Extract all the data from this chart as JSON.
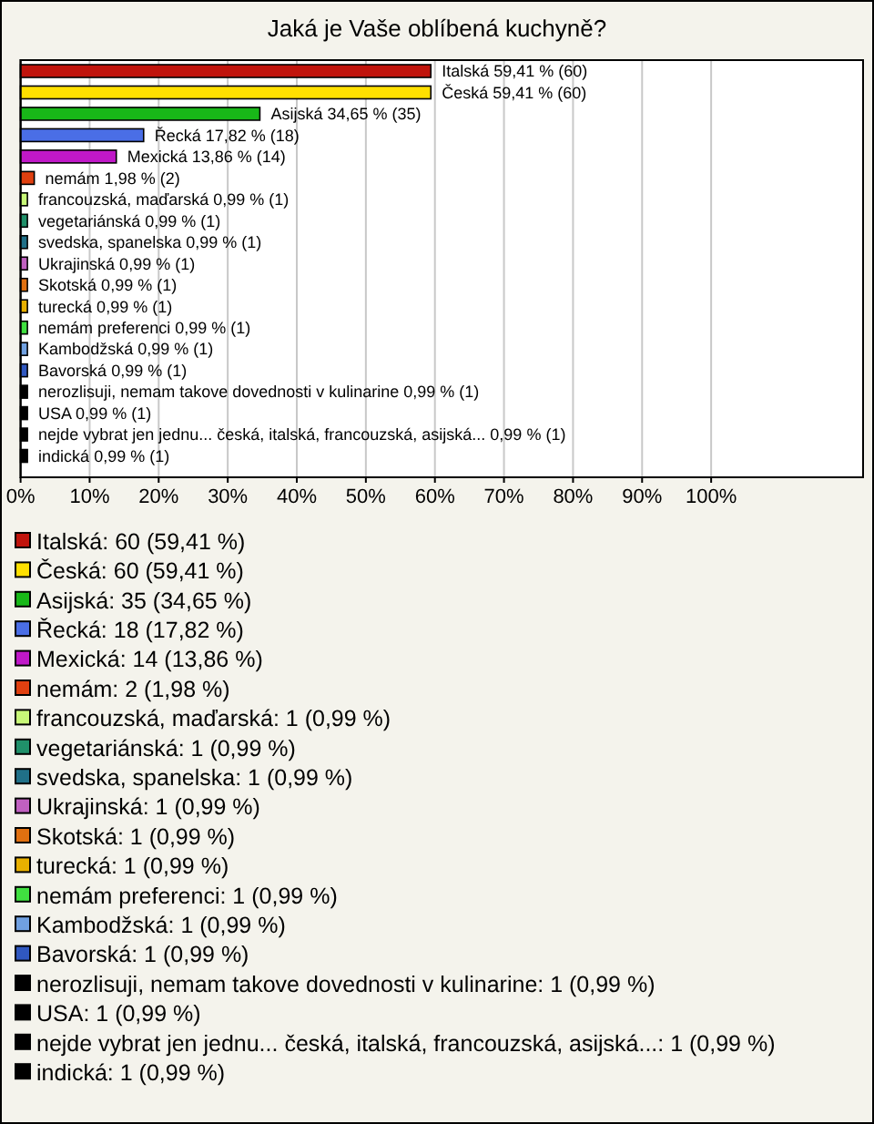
{
  "chart_data": {
    "type": "bar",
    "orientation": "horizontal",
    "title": "Jaká je Vaše oblíbená kuchyně?",
    "categories": [
      "Italská",
      "Česká",
      "Asijská",
      "Řecká",
      "Mexická",
      "nemám",
      "francouzská, maďarská",
      "vegetariánská",
      "svedska, spanelska",
      "Ukrajinská",
      "Skotská",
      "turecká",
      "nemám preferenci",
      "Kambodžská",
      "Bavorská",
      "nerozlisuji, nemam takove dovednosti v kulinarine",
      "USA",
      "nejde vybrat jen jednu... česká, italská, francouzská, asijská...",
      "indická"
    ],
    "values": [
      59.41,
      59.41,
      34.65,
      17.82,
      13.86,
      1.98,
      0.99,
      0.99,
      0.99,
      0.99,
      0.99,
      0.99,
      0.99,
      0.99,
      0.99,
      0.99,
      0.99,
      0.99,
      0.99
    ],
    "value_labels": [
      "59,41 % (60)",
      "59,41 % (60)",
      "34,65 % (35)",
      "17,82 % (18)",
      "13,86 % (14)",
      "1,98 % (2)",
      "0,99 % (1)",
      "0,99 % (1)",
      "0,99 % (1)",
      "0,99 % (1)",
      "0,99 % (1)",
      "0,99 % (1)",
      "0,99 % (1)",
      "0,99 % (1)",
      "0,99 % (1)",
      "0,99 % (1)",
      "0,99 % (1)",
      "0,99 % (1)",
      "0,99 % (1)"
    ],
    "colors": [
      "#c0140c",
      "#ffe000",
      "#18b818",
      "#4a6ee6",
      "#c018c8",
      "#e04010",
      "#c8f878",
      "#20906a",
      "#207088",
      "#c060c0",
      "#e07010",
      "#e8b000",
      "#40e040",
      "#70a0e0",
      "#3058c0",
      "#000000",
      "#000000",
      "#000000",
      "#000000"
    ],
    "xlim": [
      0,
      122
    ],
    "xticks": [
      {
        "value": 0,
        "label": "0%"
      },
      {
        "value": 10,
        "label": "10%"
      },
      {
        "value": 20,
        "label": "20%"
      },
      {
        "value": 30,
        "label": "30%"
      },
      {
        "value": 40,
        "label": "40%"
      },
      {
        "value": 50,
        "label": "50%"
      },
      {
        "value": 60,
        "label": "60%"
      },
      {
        "value": 70,
        "label": "70%"
      },
      {
        "value": 80,
        "label": "80%"
      },
      {
        "value": 90,
        "label": "90%"
      },
      {
        "value": 100,
        "label": "100%"
      }
    ],
    "grid": "x",
    "annotations": [
      "Italská: 60 (59,41 %)",
      "Česká: 60 (59,41 %)",
      "Asijská: 35 (34,65 %)",
      "Řecká: 18 (17,82 %)",
      "Mexická: 14 (13,86 %)",
      "nemám: 2 (1,98 %)",
      "francouzská, maďarská: 1 (0,99 %)",
      "vegetariánská: 1 (0,99 %)",
      "svedska, spanelska: 1 (0,99 %)",
      "Ukrajinská: 1 (0,99 %)",
      "Skotská: 1 (0,99 %)",
      "turecká: 1 (0,99 %)",
      "nemám preferenci: 1 (0,99 %)",
      "Kambodžská: 1 (0,99 %)",
      "Bavorská: 1 (0,99 %)",
      "nerozlisuji, nemam takove dovednosti v kulinarine: 1 (0,99 %)",
      "USA: 1 (0,99 %)",
      "nejde vybrat jen jednu... česká, italská, francouzská, asijská...: 1 (0,99 %)",
      "indická: 1 (0,99 %)"
    ]
  }
}
